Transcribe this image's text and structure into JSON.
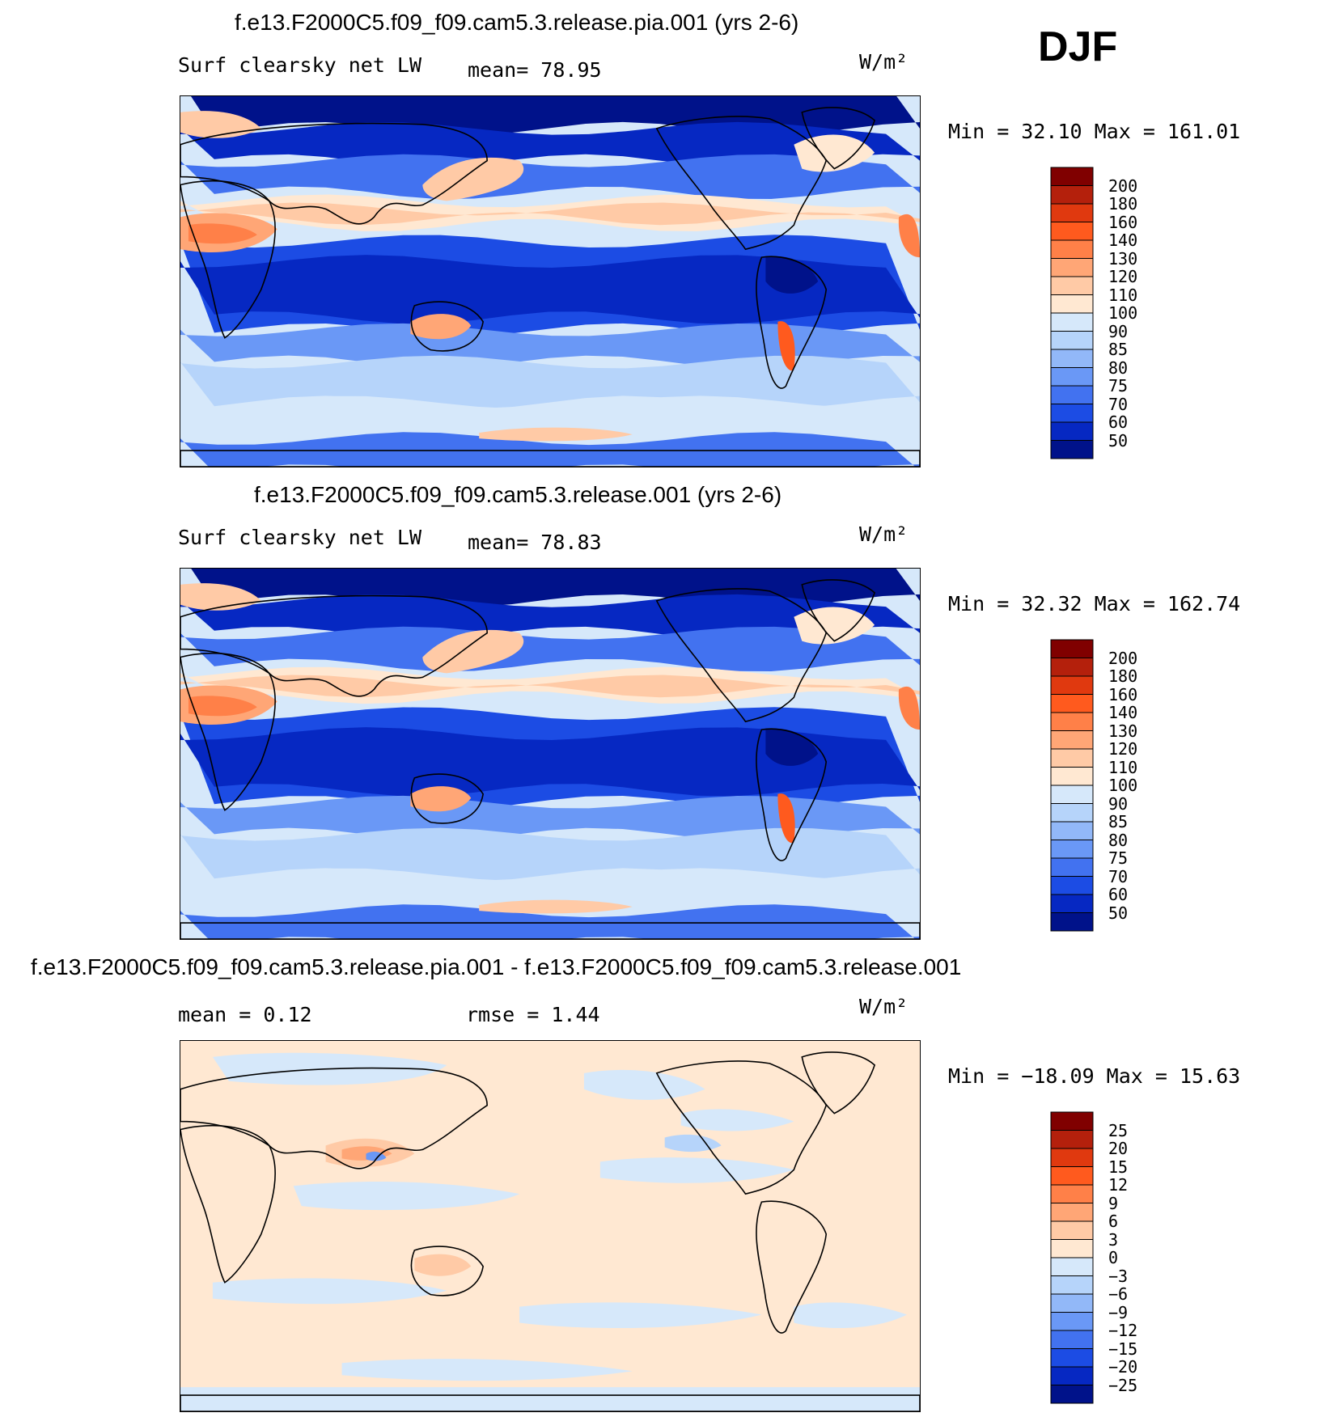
{
  "season": "DJF",
  "units": "W/m²",
  "chart_data": [
    {
      "type": "heatmap",
      "title": "f.e13.F2000C5.f09_f09.cam5.3.release.pia.001 (yrs 2-6)",
      "variable_label": "Surf clearsky net LW",
      "mean_text": "mean=   78.95",
      "mean": 78.95,
      "units": "W/m²",
      "min": 32.1,
      "max": 161.01,
      "minmax_text": "Min =   32.10 Max =  161.01",
      "levels": [
        "200",
        "180",
        "160",
        "140",
        "130",
        "120",
        "110",
        "100",
        "90",
        "85",
        "80",
        "75",
        "70",
        "60",
        "50"
      ],
      "level_colors": [
        "#800000",
        "#b4200c",
        "#e0390f",
        "#ff5a1e",
        "#ff8048",
        "#ffa676",
        "#ffcaa6",
        "#ffe8d2",
        "#d6e8fa",
        "#b6d4fa",
        "#92b8f8",
        "#6a98f6",
        "#4272f0",
        "#1c4ce4",
        "#0628c2",
        "#00128a"
      ]
    },
    {
      "type": "heatmap",
      "title": "f.e13.F2000C5.f09_f09.cam5.3.release.001 (yrs 2-6)",
      "variable_label": "Surf clearsky net LW",
      "mean_text": "mean=   78.83",
      "mean": 78.83,
      "units": "W/m²",
      "min": 32.32,
      "max": 162.74,
      "minmax_text": "Min =   32.32 Max =  162.74",
      "levels": [
        "200",
        "180",
        "160",
        "140",
        "130",
        "120",
        "110",
        "100",
        "90",
        "85",
        "80",
        "75",
        "70",
        "60",
        "50"
      ],
      "level_colors": [
        "#800000",
        "#b4200c",
        "#e0390f",
        "#ff5a1e",
        "#ff8048",
        "#ffa676",
        "#ffcaa6",
        "#ffe8d2",
        "#d6e8fa",
        "#b6d4fa",
        "#92b8f8",
        "#6a98f6",
        "#4272f0",
        "#1c4ce4",
        "#0628c2",
        "#00128a"
      ]
    },
    {
      "type": "heatmap",
      "title": "f.e13.F2000C5.f09_f09.cam5.3.release.pia.001 - f.e13.F2000C5.f09_f09.cam5.3.release.001",
      "mean_text": "mean =    0.12",
      "mean": 0.12,
      "rmse_text": "rmse =    1.44",
      "rmse": 1.44,
      "units": "W/m²",
      "min": -18.09,
      "max": 15.63,
      "minmax_text": "Min = −18.09 Max =   15.63",
      "levels": [
        "25",
        "20",
        "15",
        "12",
        "9",
        "6",
        "3",
        "0",
        "−3",
        "−6",
        "−9",
        "−12",
        "−15",
        "−20",
        "−25"
      ],
      "level_colors": [
        "#800000",
        "#b4200c",
        "#e0390f",
        "#ff5a1e",
        "#ff8048",
        "#ffa676",
        "#ffcaa6",
        "#ffe8d2",
        "#d6e8fa",
        "#b6d4fa",
        "#92b8f8",
        "#6a98f6",
        "#4272f0",
        "#1c4ce4",
        "#0628c2",
        "#00128a"
      ]
    }
  ]
}
